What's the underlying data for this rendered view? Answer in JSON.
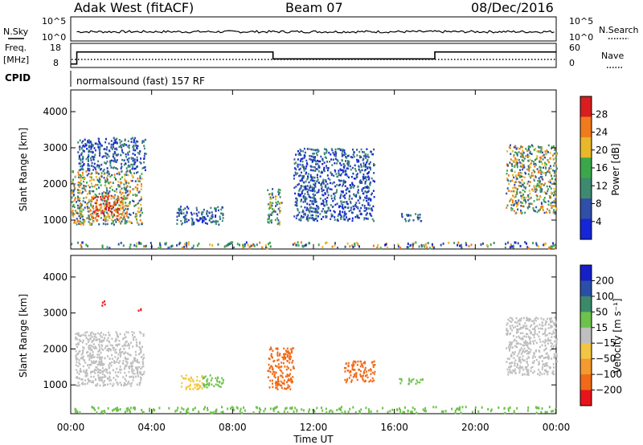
{
  "header": {
    "station": "Adak West (fitACF)",
    "beam": "Beam 07",
    "date": "08/Dec/2016"
  },
  "summary_panels": {
    "nsky_label": "N.Sky",
    "nsearch_label": "N.Search",
    "noise_ticks_left": [
      "10^5",
      "10^0"
    ],
    "noise_ticks_right": [
      "10^5",
      "10^0"
    ],
    "freq_label": "Freq.",
    "freq_unit": "[MHz]",
    "freq_ticks": [
      "18",
      "8"
    ],
    "nave_label": "Nave",
    "nave_ticks": [
      "60",
      "0"
    ],
    "cpid_label": "CPID",
    "cpid_text": "normalsound (fast) 157 RF",
    "freq_series": {
      "unit": "MHz",
      "breakpoints_hours": [
        0,
        0.3,
        10.0,
        18.0,
        24.0
      ],
      "values_mhz": [
        8,
        15,
        11,
        15
      ]
    }
  },
  "chart_data": [
    {
      "type": "heatmap",
      "name": "power",
      "title": "",
      "xlabel": "",
      "ylabel": "Slant Range [km]",
      "x_ticks": [
        "00:00",
        "04:00",
        "08:00",
        "12:00",
        "16:00",
        "20:00",
        "00:00"
      ],
      "xlim_hours": [
        0,
        24
      ],
      "y_ticks": [
        1000,
        2000,
        3000,
        4000
      ],
      "ylim": [
        200,
        4600
      ],
      "colorbar": {
        "label": "Power [dB]",
        "ticks": [
          4,
          8,
          12,
          16,
          20,
          24,
          28
        ],
        "range": [
          0,
          30
        ],
        "colors": [
          "#1426d6",
          "#2f4fa8",
          "#3d8a6f",
          "#3aa84a",
          "#e8b72a",
          "#f07a1c",
          "#d81e1e"
        ]
      },
      "echo_regions": [
        {
          "t0": 0.0,
          "t1": 3.5,
          "r0": 900,
          "r1": 2400,
          "level": "high"
        },
        {
          "t0": 1.0,
          "t1": 2.6,
          "r0": 1000,
          "r1": 1700,
          "level": "peak"
        },
        {
          "t0": 0.3,
          "t1": 3.7,
          "r0": 2400,
          "r1": 3300,
          "level": "low"
        },
        {
          "t0": 5.2,
          "t1": 7.5,
          "r0": 900,
          "r1": 1400,
          "level": "low"
        },
        {
          "t0": 9.7,
          "t1": 10.4,
          "r0": 900,
          "r1": 1900,
          "level": "mid"
        },
        {
          "t0": 11.0,
          "t1": 15.0,
          "r0": 1000,
          "r1": 3000,
          "level": "low"
        },
        {
          "t0": 16.2,
          "t1": 17.3,
          "r0": 1000,
          "r1": 1200,
          "level": "low"
        },
        {
          "t0": 21.5,
          "t1": 24.0,
          "r0": 1200,
          "r1": 3100,
          "level": "high"
        },
        {
          "t0": 0.0,
          "t1": 24.0,
          "r0": 250,
          "r1": 420,
          "level": "ground"
        }
      ]
    },
    {
      "type": "heatmap",
      "name": "velocity",
      "title": "",
      "xlabel": "Time UT",
      "ylabel": "Slant Range [km]",
      "x_ticks": [
        "00:00",
        "04:00",
        "08:00",
        "12:00",
        "16:00",
        "20:00",
        "00:00"
      ],
      "xlim_hours": [
        0,
        24
      ],
      "y_ticks": [
        1000,
        2000,
        3000,
        4000
      ],
      "ylim": [
        200,
        4600
      ],
      "colorbar": {
        "label": "Velocity [m s⁻¹]",
        "ticks": [
          "-200",
          "-100",
          "-50",
          "-15",
          "15",
          "50",
          "100",
          "200"
        ],
        "colors": [
          "#e8141b",
          "#f06a18",
          "#f49a2e",
          "#f2c642",
          "#bfbfbf",
          "#6cc24a",
          "#3a8a6a",
          "#2a4fa8",
          "#1620c9"
        ]
      },
      "echo_regions": [
        {
          "t0": 0.2,
          "t1": 3.6,
          "r0": 1000,
          "r1": 2500,
          "color": "#bfbfbf"
        },
        {
          "t0": 6.5,
          "t1": 7.6,
          "r0": 950,
          "r1": 1300,
          "color": "#6cc24a"
        },
        {
          "t0": 5.4,
          "t1": 6.5,
          "r0": 900,
          "r1": 1300,
          "color": "#f2c642"
        },
        {
          "t0": 9.7,
          "t1": 11.0,
          "r0": 900,
          "r1": 2100,
          "color": "#f06a18"
        },
        {
          "t0": 13.5,
          "t1": 15.0,
          "r0": 1100,
          "r1": 1700,
          "color": "#f06a18"
        },
        {
          "t0": 16.2,
          "t1": 17.4,
          "r0": 1050,
          "r1": 1200,
          "color": "#6cc24a"
        },
        {
          "t0": 21.5,
          "t1": 24.0,
          "r0": 1300,
          "r1": 2900,
          "color": "#bfbfbf"
        },
        {
          "t0": 1.5,
          "t1": 1.7,
          "r0": 3150,
          "r1": 3350,
          "color": "#e8141b"
        },
        {
          "t0": 3.3,
          "t1": 3.5,
          "r0": 3050,
          "r1": 3200,
          "color": "#e8141b"
        },
        {
          "t0": 0.0,
          "t1": 24.0,
          "r0": 250,
          "r1": 420,
          "color": "#6cc24a"
        }
      ]
    }
  ]
}
